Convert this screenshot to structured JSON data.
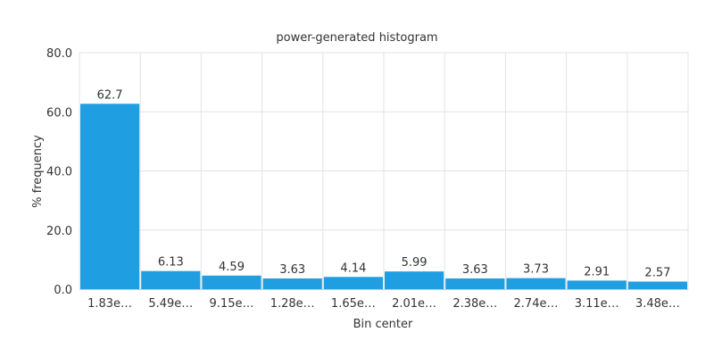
{
  "chart_data": {
    "type": "bar",
    "title": "power-generated histogram",
    "xlabel": "Bin center",
    "ylabel": "% frequency",
    "categories": [
      "1.83e…",
      "5.49e…",
      "9.15e…",
      "1.28e…",
      "1.65e…",
      "2.01e…",
      "2.38e…",
      "2.74e…",
      "3.11e…",
      "3.48e…"
    ],
    "values": [
      62.7,
      6.13,
      4.59,
      3.63,
      4.14,
      5.99,
      3.63,
      3.73,
      2.91,
      2.57
    ],
    "data_labels": [
      "62.7",
      "6.13",
      "4.59",
      "3.63",
      "4.14",
      "5.99",
      "3.63",
      "3.73",
      "2.91",
      "2.57"
    ],
    "ylim": [
      0,
      80
    ],
    "yticks": [
      "0.0",
      "20.0",
      "40.0",
      "60.0",
      "80.0"
    ],
    "grid": true,
    "legend": "none",
    "bar_color": "#1f9ee1"
  }
}
